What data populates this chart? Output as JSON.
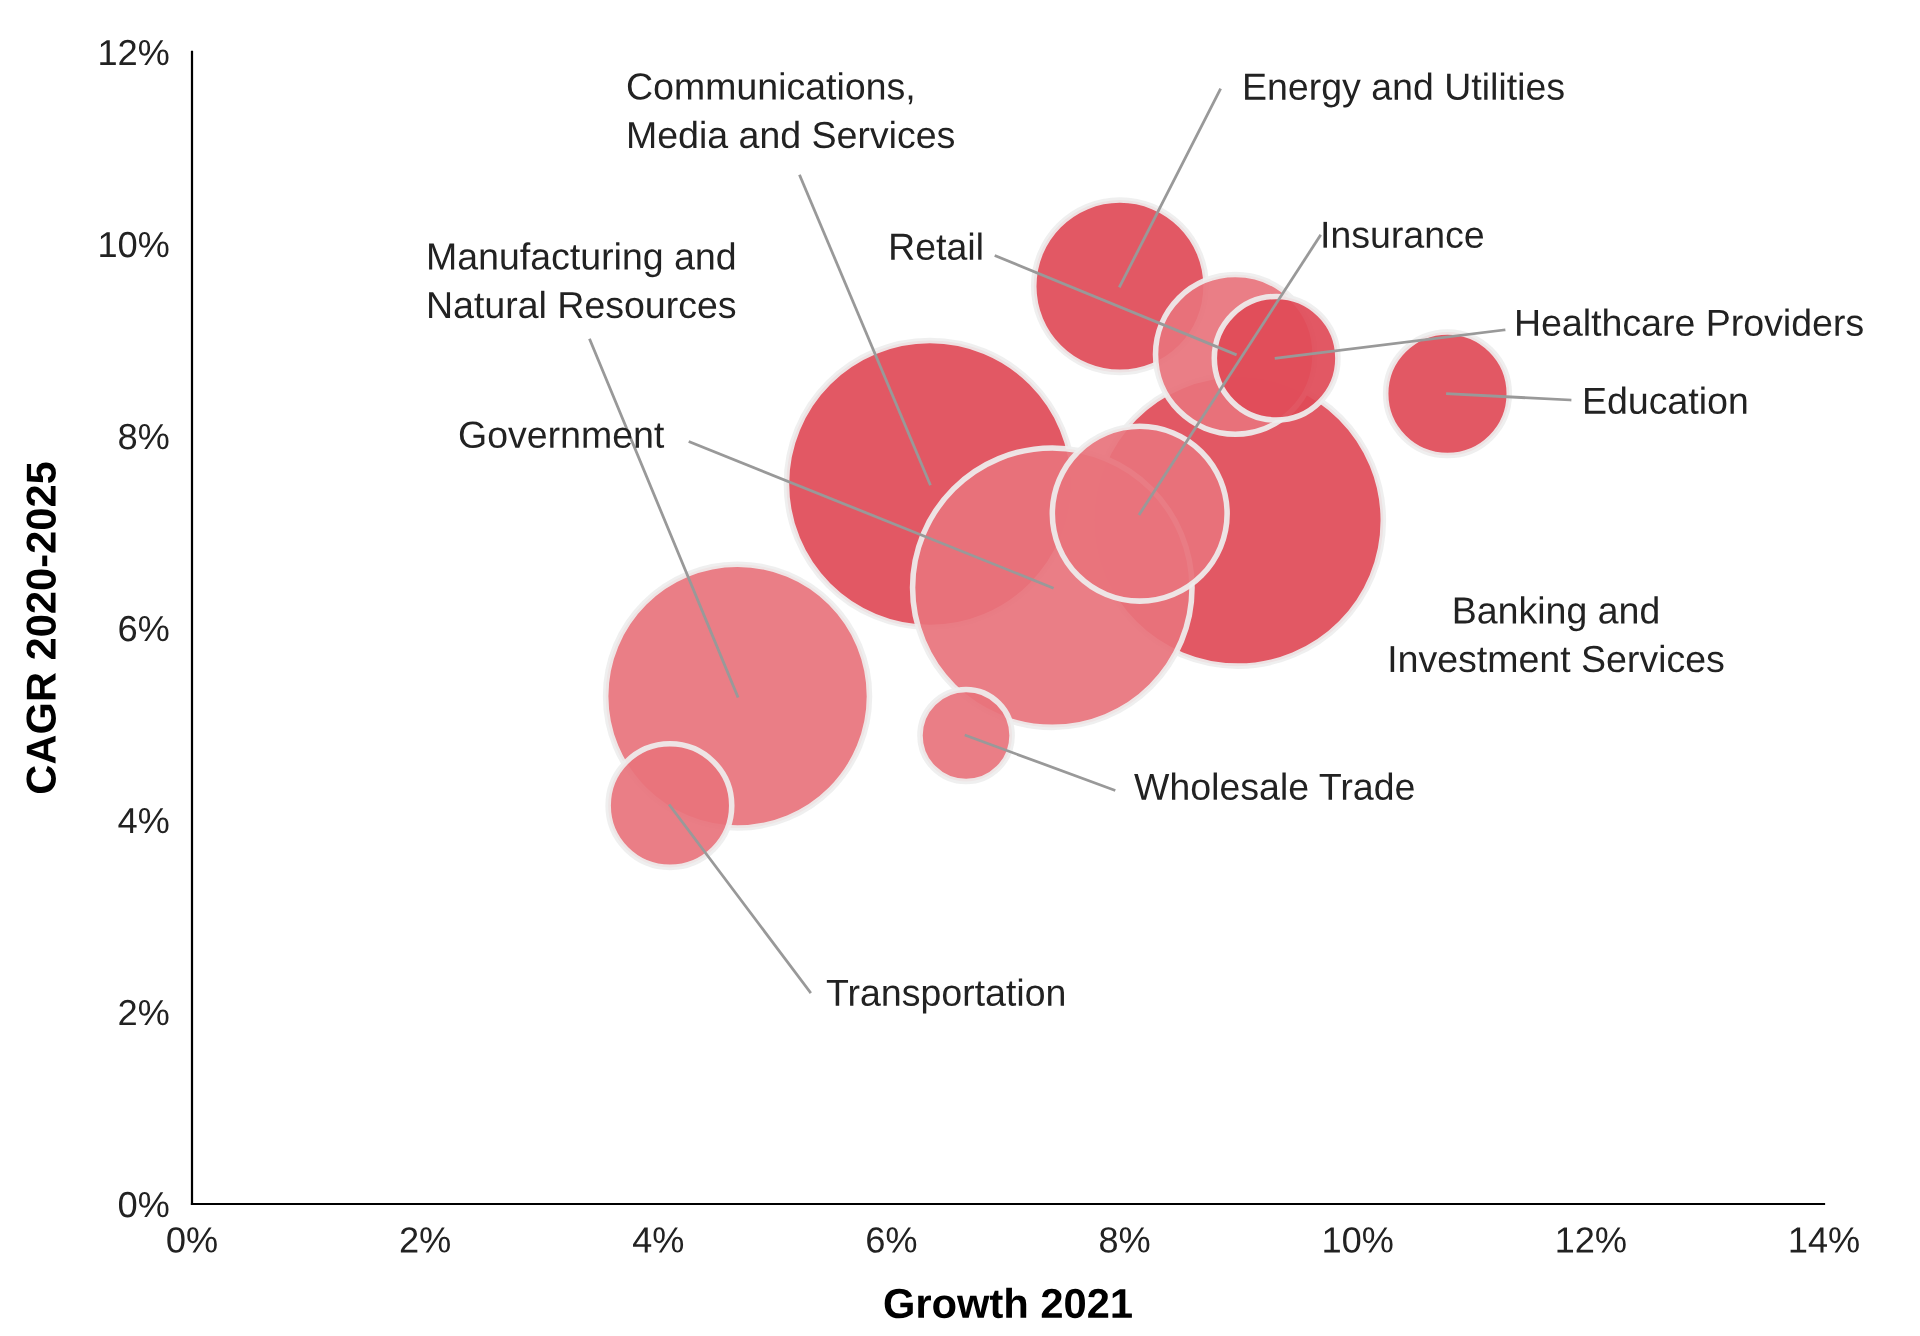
{
  "chart_data": {
    "type": "bubble",
    "xlabel": "Growth 2021",
    "ylabel": "CAGR 2020-2025",
    "series": [
      {
        "name": "Communications,\nMedia and Services",
        "color": "#e04a57",
        "x": [
          6.33
        ],
        "values": [
          7.5
        ],
        "sizes": [
          0.97
        ]
      },
      {
        "name": "Banking and\nInvestment Services",
        "color": "#e04a57",
        "x": [
          8.97
        ],
        "values": [
          7.12
        ],
        "sizes": [
          1
        ]
      },
      {
        "name": "Government",
        "color": "#e8737c",
        "x": [
          7.38
        ],
        "values": [
          6.42
        ],
        "sizes": [
          0.92
        ]
      },
      {
        "name": "Manufacturing and\nNatural Resources",
        "color": "#e8737c",
        "x": [
          4.68
        ],
        "values": [
          5.29
        ],
        "sizes": [
          0.82
        ]
      },
      {
        "name": "Energy and Utilities",
        "color": "#e04a57",
        "x": [
          7.96
        ],
        "values": [
          9.56
        ],
        "sizes": [
          0.35
        ]
      },
      {
        "name": "Insurance",
        "color": "#e8737c",
        "x": [
          8.13
        ],
        "values": [
          7.19
        ],
        "sizes": [
          0.36
        ]
      },
      {
        "name": "Retail",
        "color": "#e8737c",
        "x": [
          8.95
        ],
        "values": [
          8.85
        ],
        "sizes": [
          0.3
        ]
      },
      {
        "name": "Healthcare Providers",
        "color": "#e04a57",
        "x": [
          9.3
        ],
        "values": [
          8.81
        ],
        "sizes": [
          0.18
        ]
      },
      {
        "name": "Education",
        "color": "#e04a57",
        "x": [
          10.77
        ],
        "values": [
          8.44
        ],
        "sizes": [
          0.18
        ]
      },
      {
        "name": "Wholesale Trade",
        "color": "#e8737c",
        "x": [
          6.64
        ],
        "values": [
          4.88
        ],
        "sizes": [
          0.1
        ]
      },
      {
        "name": "Transportation",
        "color": "#e8737c",
        "x": [
          4.1
        ],
        "values": [
          4.15
        ],
        "sizes": [
          0.18
        ]
      }
    ],
    "xlim": [
      0,
      14
    ],
    "ylim": [
      0,
      12
    ],
    "xticks": [
      {
        "value": 0,
        "label": "0%"
      },
      {
        "value": 2,
        "label": "2%"
      },
      {
        "value": 4,
        "label": "4%"
      },
      {
        "value": 6,
        "label": "6%"
      },
      {
        "value": 8,
        "label": "8%"
      },
      {
        "value": 10,
        "label": "10%"
      },
      {
        "value": 12,
        "label": "12%"
      },
      {
        "value": 14,
        "label": "14%"
      }
    ],
    "yticks": [
      {
        "value": 0,
        "label": "0%"
      },
      {
        "value": 2,
        "label": "2%"
      },
      {
        "value": 4,
        "label": "4%"
      },
      {
        "value": 6,
        "label": "6%"
      },
      {
        "value": 8,
        "label": "8%"
      },
      {
        "value": 10,
        "label": "10%"
      },
      {
        "value": 12,
        "label": "12%"
      }
    ],
    "grid": false,
    "legend": false
  }
}
